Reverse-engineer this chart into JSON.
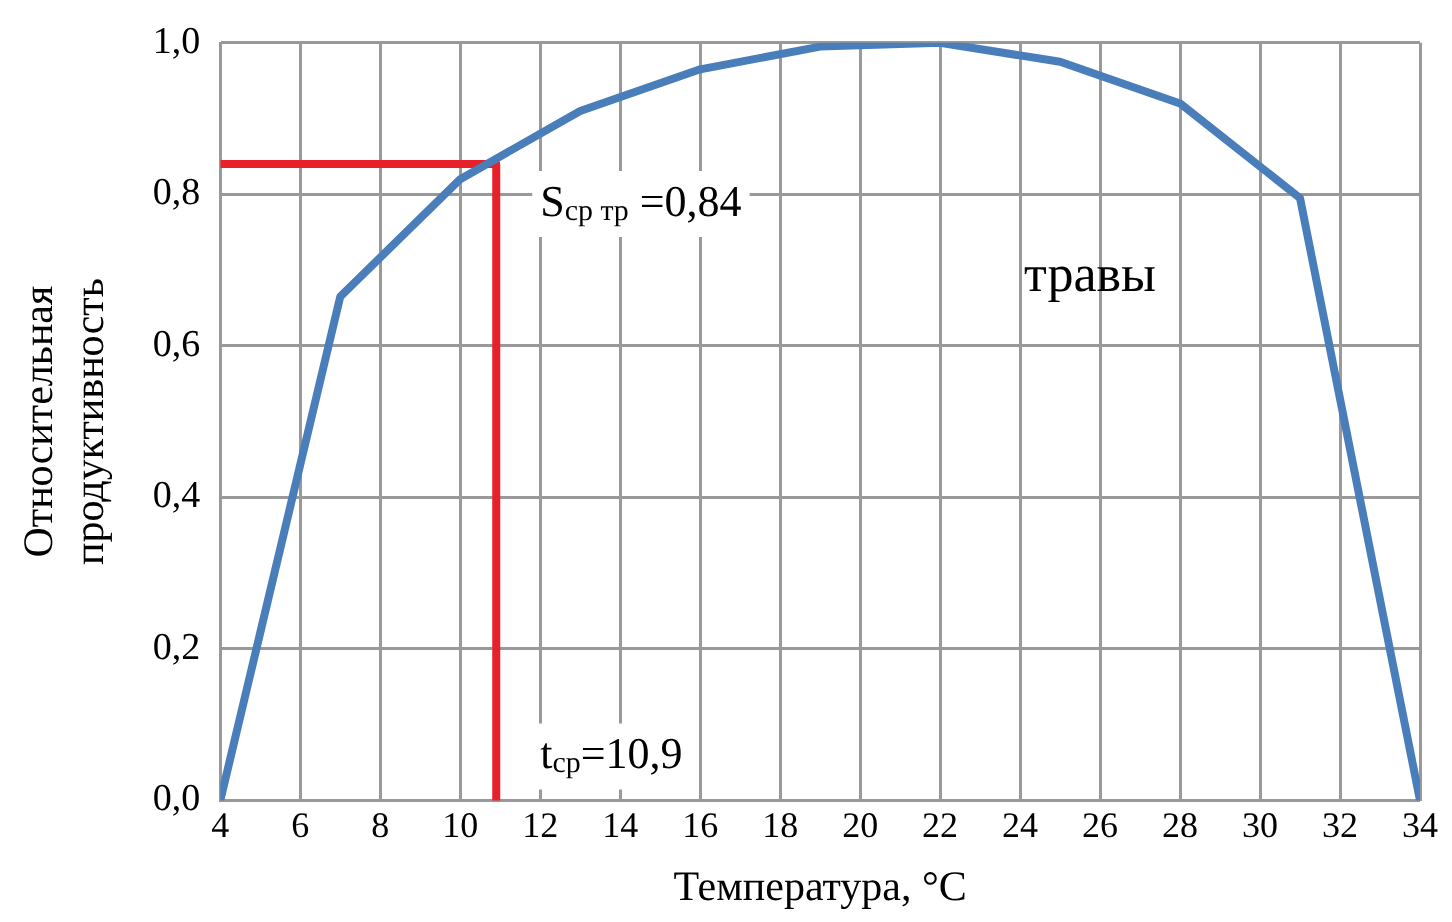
{
  "chart_data": {
    "type": "line",
    "xlabel": "Температура, °C",
    "ylabel": "Относительная продуктивность",
    "xlim": [
      4,
      34
    ],
    "xticks": [
      4,
      6,
      8,
      10,
      12,
      14,
      16,
      18,
      20,
      22,
      24,
      26,
      28,
      30,
      32,
      34
    ],
    "ylim": [
      0,
      1
    ],
    "yticks": [
      {
        "value": 0,
        "label": "0,0"
      },
      {
        "value": 0.2,
        "label": "0,2"
      },
      {
        "value": 0.4,
        "label": "0,4"
      },
      {
        "value": 0.6,
        "label": "0,6"
      },
      {
        "value": 0.8,
        "label": "0,8"
      },
      {
        "value": 1,
        "label": "1,0"
      }
    ],
    "series": [
      {
        "color": "#4a7ebb",
        "x": [
          4,
          7,
          10,
          13,
          16,
          19,
          22,
          25,
          28,
          31,
          34
        ],
        "values": [
          0,
          0.665,
          0.82,
          0.91,
          0.965,
          0.995,
          1,
          0.975,
          0.92,
          0.795,
          0
        ]
      },
      {
        "color": "#e8202a",
        "x": [
          4,
          10.9,
          10.9
        ],
        "values": [
          0.84,
          0.84,
          0
        ]
      }
    ],
    "annotations": [
      {
        "text": "S$_{ср тр}$ =0,84",
        "x": 10.9,
        "y": 0.84
      },
      {
        "text": "t$_{ср}$=10,9",
        "x": 10.9,
        "y": 0
      },
      "травы"
    ],
    "grid": true,
    "legend": false,
    "marker": "none",
    "line_style": "solid"
  }
}
